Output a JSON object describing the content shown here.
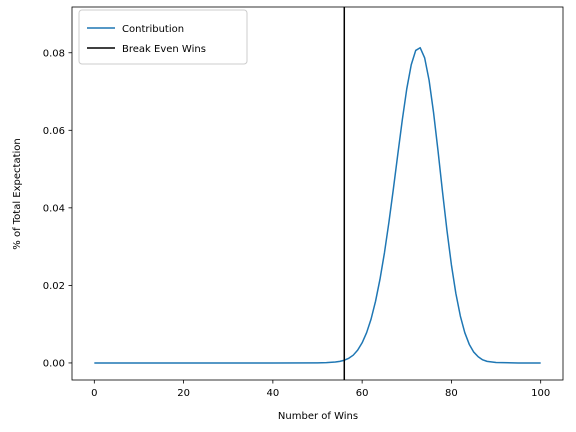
{
  "chart_data": {
    "type": "line",
    "xlabel": "Number of Wins",
    "ylabel": "% of Total Expectation",
    "xlim": [
      -5,
      105
    ],
    "ylim": [
      -0.0044,
      0.0918
    ],
    "xticks": [
      0,
      20,
      40,
      60,
      80,
      100
    ],
    "xtick_labels": [
      "0",
      "20",
      "40",
      "60",
      "80",
      "100"
    ],
    "yticks": [
      0.0,
      0.02,
      0.04,
      0.06,
      0.08
    ],
    "ytick_labels": [
      "0.00",
      "0.02",
      "0.04",
      "0.06",
      "0.08"
    ],
    "grid": false,
    "legend_position": "top-left",
    "series": [
      {
        "name": "Contribution",
        "color": "#1f77b4",
        "x": [
          0,
          10,
          20,
          30,
          40,
          50,
          52,
          54,
          55,
          56,
          57,
          58,
          59,
          60,
          61,
          62,
          63,
          64,
          65,
          66,
          67,
          68,
          69,
          70,
          71,
          72,
          73,
          74,
          75,
          76,
          77,
          78,
          79,
          80,
          81,
          82,
          83,
          84,
          85,
          86,
          87,
          88,
          90,
          95,
          100
        ],
        "y": [
          0.0,
          0.0,
          0.0,
          0.0,
          0.0,
          2e-05,
          7e-05,
          0.00023,
          0.0004,
          0.0007,
          0.0012,
          0.002,
          0.0033,
          0.0052,
          0.0078,
          0.0113,
          0.0159,
          0.0216,
          0.0284,
          0.0363,
          0.0449,
          0.0539,
          0.0627,
          0.0707,
          0.0769,
          0.0806,
          0.0813,
          0.0787,
          0.0729,
          0.0646,
          0.0547,
          0.0442,
          0.0342,
          0.0253,
          0.0179,
          0.0121,
          0.0078,
          0.0048,
          0.0028,
          0.0016,
          0.0008,
          0.0004,
          0.0001,
          0.0,
          0.0
        ]
      },
      {
        "name": "Break Even Wins",
        "color": "#000000",
        "type": "vline",
        "x": 56
      }
    ]
  }
}
